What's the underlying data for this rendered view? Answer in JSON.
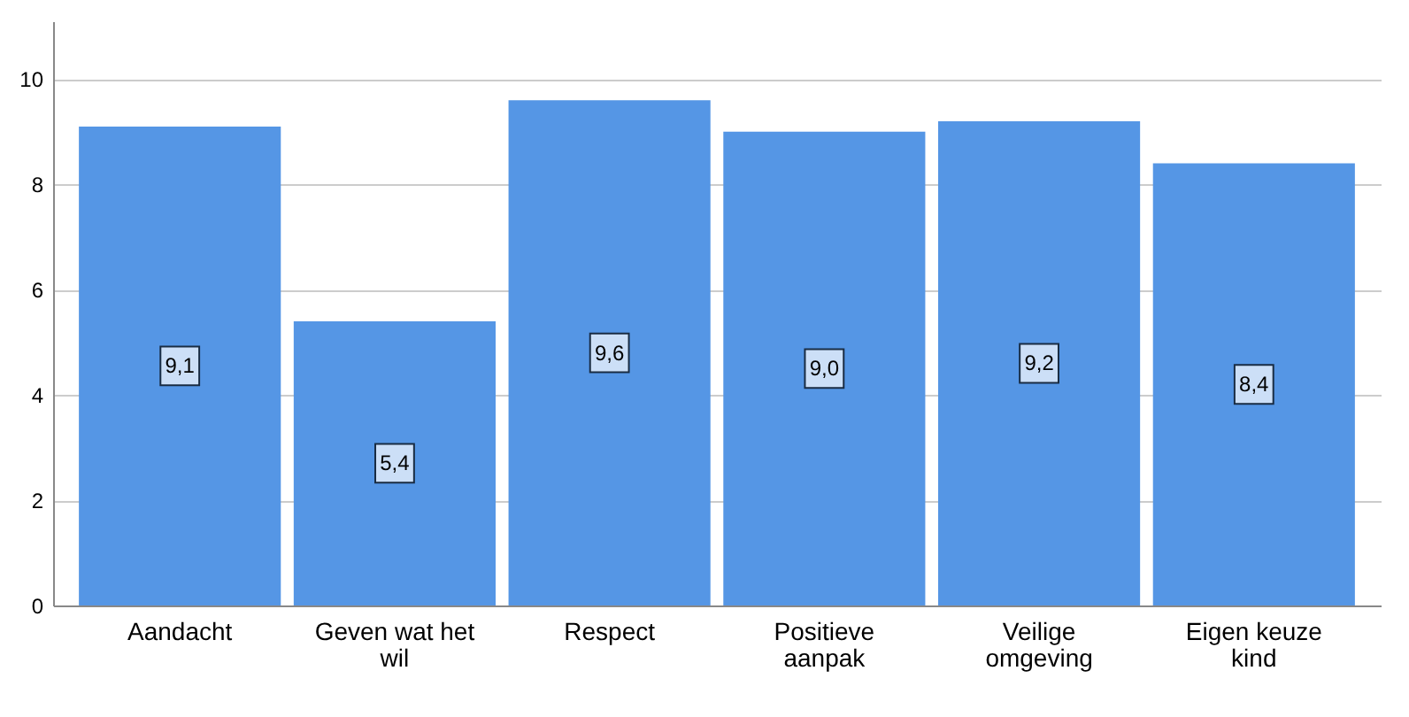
{
  "chart_data": {
    "type": "bar",
    "categories": [
      "Aandacht",
      "Geven wat het wil",
      "Respect",
      "Positieve aanpak",
      "Veilige omgeving",
      "Eigen keuze kind"
    ],
    "values": [
      9.1,
      5.4,
      9.6,
      9.0,
      9.2,
      8.4
    ],
    "value_labels": [
      "9,1",
      "5,4",
      "9,6",
      "9,0",
      "9,2",
      "8,4"
    ],
    "color": "#5596e5",
    "ylim": [
      0,
      11.1
    ],
    "yticks": [
      0,
      2,
      4,
      6,
      8,
      10
    ],
    "grid": "y"
  }
}
